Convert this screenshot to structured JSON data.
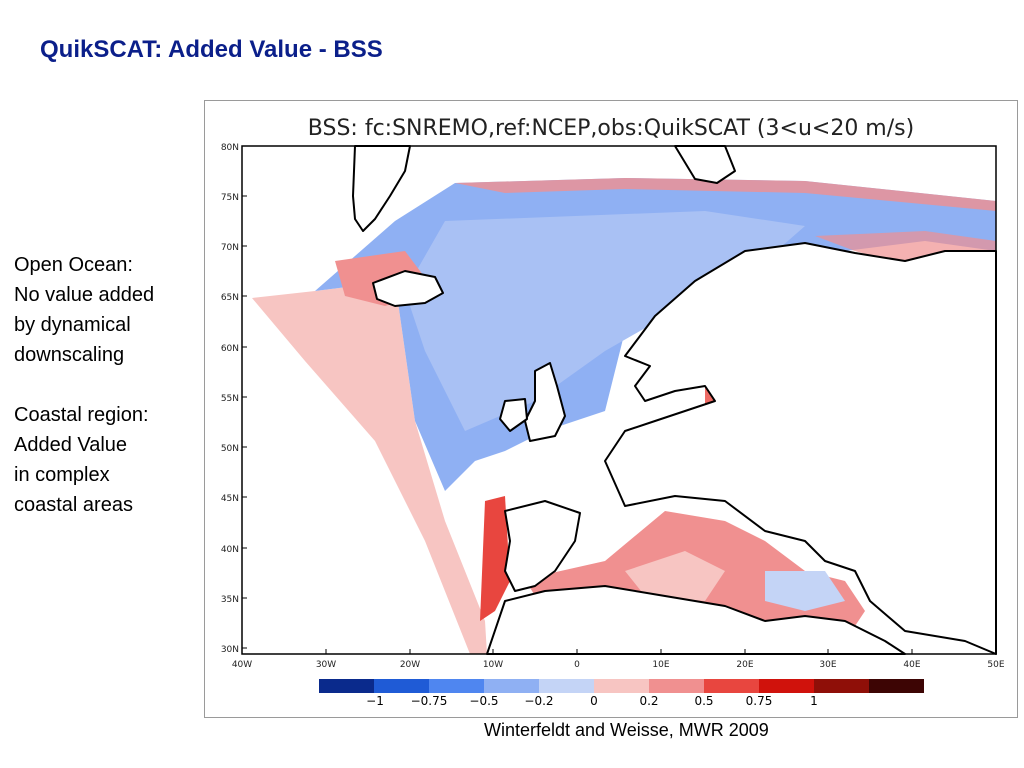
{
  "slide": {
    "title": "QuikSCAT: Added Value - BSS",
    "notes": [
      "Open Ocean:",
      "No value added",
      "by dynamical",
      "downscaling",
      "",
      "Coastal region:",
      "Added Value",
      "in complex",
      "coastal areas"
    ],
    "citation": "Winterfeldt and Weisse, MWR 2009"
  },
  "map": {
    "title": "BSS:  fc:SNREMO,ref:NCEP,obs:QuikSCAT  (3<u<20  m/s)",
    "lon_range": [
      -40,
      50
    ],
    "lat_range": [
      29,
      80
    ],
    "lon_ticks": [
      "40W",
      "30W",
      "20W",
      "10W",
      "0",
      "10E",
      "20E",
      "30E",
      "40E",
      "50E"
    ],
    "lat_ticks": [
      "80N",
      "75N",
      "70N",
      "65N",
      "60N",
      "55N",
      "50N",
      "45N",
      "40N",
      "35N",
      "30N"
    ],
    "colorbar": {
      "labels": [
        "−1",
        "−0.75",
        "−0.5",
        "−0.2",
        "0",
        "0.2",
        "0.5",
        "0.75",
        "1"
      ],
      "colors": [
        "#0a2a8c",
        "#1f5bd6",
        "#4f86f0",
        "#8fb0f3",
        "#c4d4f6",
        "#f7c5c2",
        "#f09090",
        "#e8463f",
        "#d0120c",
        "#8f0f08",
        "#3d0504"
      ]
    }
  }
}
